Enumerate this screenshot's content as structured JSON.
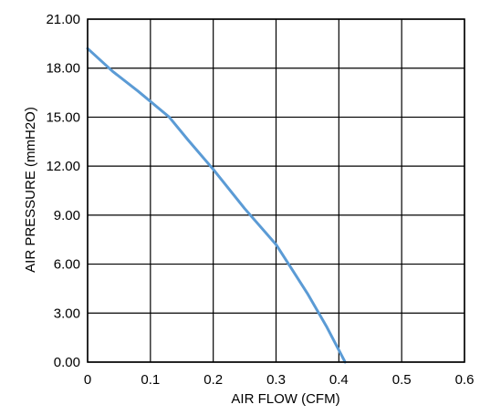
{
  "chart_data": {
    "type": "line",
    "title": "",
    "xlabel": "AIR FLOW   (CFM)",
    "ylabel": "AIR PRESSURE   (mmH2O)",
    "xlim": [
      0,
      0.6
    ],
    "ylim": [
      0,
      21
    ],
    "x_ticks": [
      0,
      0.1,
      0.2,
      0.3,
      0.4,
      0.5,
      0.6
    ],
    "x_tick_labels": [
      "0",
      "0.1",
      "0.2",
      "0.3",
      "0.4",
      "0.5",
      "0.6"
    ],
    "y_ticks": [
      0,
      3,
      6,
      9,
      12,
      15,
      18,
      21
    ],
    "y_tick_labels": [
      "0.00",
      "3.00",
      "6.00",
      "9.00",
      "12.00",
      "15.00",
      "18.00",
      "21.00"
    ],
    "grid": true,
    "legend": "none",
    "series": [
      {
        "color": "#5b9bd5",
        "x": [
          0.0,
          0.04,
          0.08,
          0.13,
          0.16,
          0.2,
          0.25,
          0.3,
          0.32,
          0.35,
          0.38,
          0.41
        ],
        "y": [
          19.2,
          17.8,
          16.6,
          15.0,
          13.6,
          11.8,
          9.4,
          7.2,
          6.0,
          4.2,
          2.2,
          0.0
        ]
      }
    ]
  }
}
